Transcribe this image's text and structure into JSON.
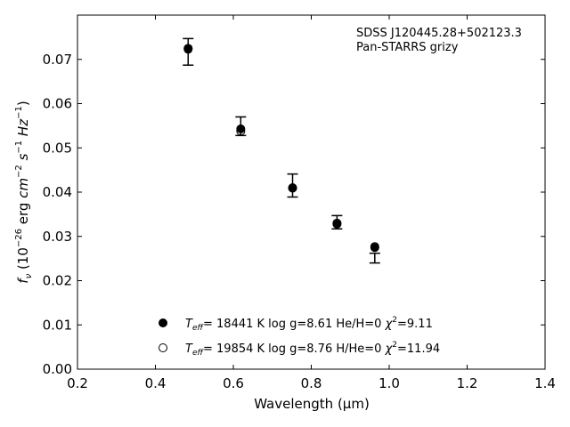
{
  "chart_data": {
    "type": "scatter",
    "xlabel": "Wavelength (μm)",
    "ylabel": "f_ν (10^-26 erg cm^-2 s^-1 Hz^-1)",
    "xlim": [
      0.2,
      1.4
    ],
    "ylim": [
      0.0,
      0.08
    ],
    "xticks": [
      "0.2",
      "0.4",
      "0.6",
      "0.8",
      "1.0",
      "1.2",
      "1.4"
    ],
    "yticks": [
      "0.00",
      "0.01",
      "0.02",
      "0.03",
      "0.04",
      "0.05",
      "0.06",
      "0.07"
    ],
    "grid": false,
    "legend_position": "lower-center",
    "annotation": [
      "SDSS J120445.28+502123.3",
      "Pan-STARRS grizy"
    ],
    "observed": {
      "x": [
        0.484,
        0.619,
        0.752,
        0.866,
        0.963
      ],
      "y": [
        0.0717,
        0.0549,
        0.0415,
        0.0332,
        0.0251
      ],
      "yerr": [
        0.003,
        0.0021,
        0.0026,
        0.0015,
        0.0011
      ]
    },
    "series": [
      {
        "name": "T_eff= 18441 K  log g=8.61  He/H=0  χ²=9.11",
        "marker": "filled-circle",
        "x": [
          0.484,
          0.619,
          0.752,
          0.866,
          0.963
        ],
        "y": [
          0.0723,
          0.0543,
          0.0409,
          0.0328,
          0.0275
        ]
      },
      {
        "name": "T_eff= 19854 K  log g=8.76  H/He=0  χ²=11.94",
        "marker": "open-circle",
        "x": [
          0.484,
          0.619,
          0.752,
          0.866,
          0.963
        ],
        "y": [
          0.0725,
          0.0538,
          0.041,
          0.033,
          0.0277
        ]
      }
    ]
  }
}
